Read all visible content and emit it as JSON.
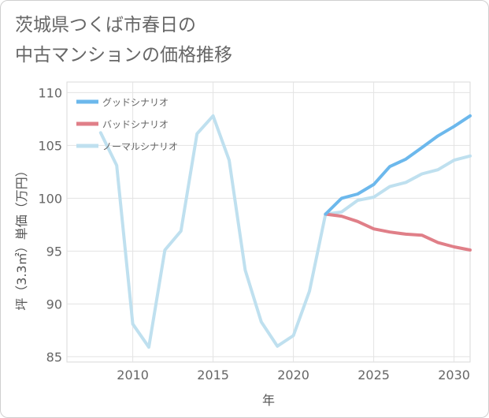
{
  "title": {
    "line1": "茨城県つくば市春日の",
    "line2": "中古マンションの価格推移"
  },
  "chart_data": {
    "type": "line",
    "title": "茨城県つくば市春日の中古マンションの価格推移",
    "xlabel": "年",
    "ylabel": "坪（3.3㎡）単価（万円）",
    "xlim": [
      2005.9,
      2031
    ],
    "ylim": [
      84.5,
      111
    ],
    "xticks": [
      2010,
      2015,
      2020,
      2025,
      2030
    ],
    "yticks": [
      85,
      90,
      95,
      100,
      105,
      110
    ],
    "grid": true,
    "legend_position": "top-left",
    "series": [
      {
        "name": "グッドシナリオ",
        "color": "#6cb8ec",
        "x": [
          2022,
          2023,
          2024,
          2025,
          2026,
          2027,
          2028,
          2029,
          2030,
          2031
        ],
        "values": [
          98.5,
          100.0,
          100.4,
          101.3,
          103.0,
          103.7,
          104.8,
          105.9,
          106.8,
          107.8
        ]
      },
      {
        "name": "バッドシナリオ",
        "color": "#e07f88",
        "x": [
          2022,
          2023,
          2024,
          2025,
          2026,
          2027,
          2028,
          2029,
          2030,
          2031
        ],
        "values": [
          98.5,
          98.3,
          97.8,
          97.1,
          96.8,
          96.6,
          96.5,
          95.8,
          95.4,
          95.1
        ]
      },
      {
        "name": "ノーマルシナリオ",
        "color": "#bfe0ef",
        "x": [
          2008,
          2009,
          2010,
          2011,
          2012,
          2013,
          2014,
          2015,
          2016,
          2017,
          2018,
          2019,
          2020,
          2021,
          2022,
          2023,
          2024,
          2025,
          2026,
          2027,
          2028,
          2029,
          2030,
          2031
        ],
        "values": [
          106.2,
          103.1,
          88.1,
          85.9,
          95.1,
          96.9,
          106.1,
          107.8,
          103.6,
          93.2,
          88.3,
          86.0,
          87.0,
          91.2,
          98.5,
          98.7,
          99.8,
          100.1,
          101.1,
          101.5,
          102.3,
          102.7,
          103.6,
          104.0
        ]
      }
    ]
  }
}
